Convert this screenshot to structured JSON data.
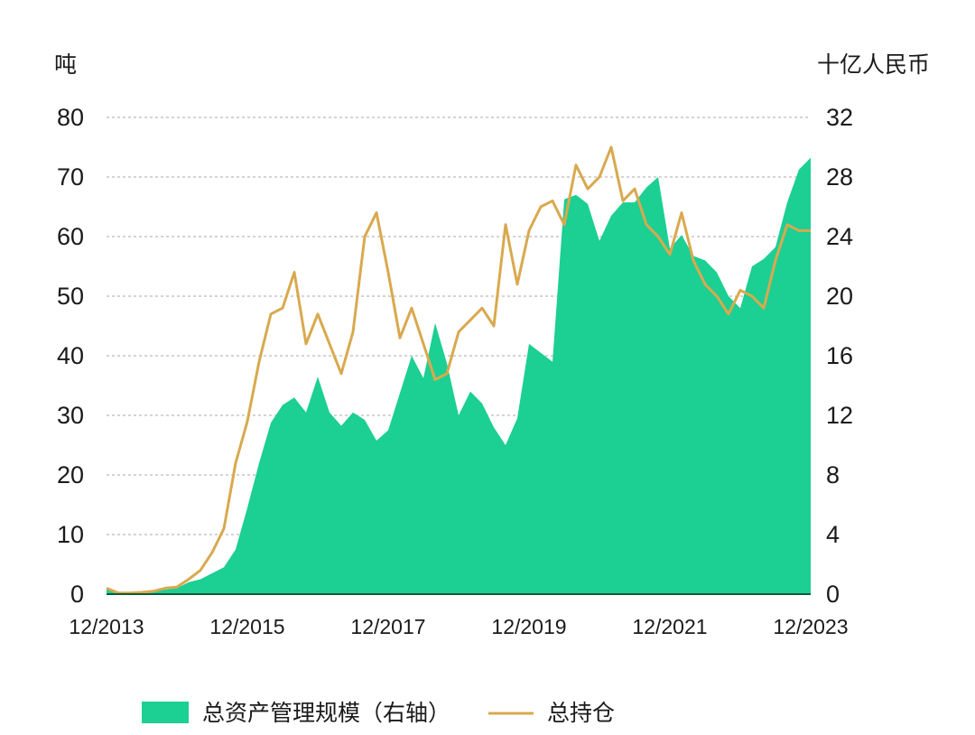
{
  "chart_data": {
    "type": "area",
    "left_axis": {
      "unit_label": "吨",
      "ylim": [
        0,
        80
      ],
      "ticks": [
        "0",
        "10",
        "20",
        "30",
        "40",
        "50",
        "60",
        "70",
        "80"
      ]
    },
    "right_axis": {
      "unit_label": "十亿人民币",
      "ylim": [
        0,
        32
      ],
      "ticks": [
        "0",
        "4",
        "8",
        "12",
        "16",
        "20",
        "24",
        "28",
        "32"
      ]
    },
    "x_ticks": [
      "12/2013",
      "12/2015",
      "12/2017",
      "12/2019",
      "12/2021",
      "12/2023"
    ],
    "x_tick_dates": [
      "2013-12",
      "2015-12",
      "2017-12",
      "2019-12",
      "2021-12",
      "2023-12"
    ],
    "xlim": [
      "2013-12",
      "2023-12"
    ],
    "grid": true,
    "legend_position": "bottom",
    "colors": {
      "area": "#1ccf93",
      "line": "#d9a94e",
      "grid": "#aaaaaa",
      "baseline": "#0e5a3c"
    },
    "series": [
      {
        "name": "总资产管理规模（右轴）",
        "kind": "area",
        "axis": "right",
        "x": [
          "2013-12",
          "2014-02",
          "2014-04",
          "2014-06",
          "2014-08",
          "2014-10",
          "2014-12",
          "2015-02",
          "2015-04",
          "2015-06",
          "2015-08",
          "2015-10",
          "2015-12",
          "2016-02",
          "2016-04",
          "2016-06",
          "2016-08",
          "2016-10",
          "2016-12",
          "2017-02",
          "2017-04",
          "2017-06",
          "2017-08",
          "2017-10",
          "2017-12",
          "2018-02",
          "2018-04",
          "2018-06",
          "2018-08",
          "2018-10",
          "2018-12",
          "2019-02",
          "2019-04",
          "2019-06",
          "2019-08",
          "2019-10",
          "2019-12",
          "2020-02",
          "2020-04",
          "2020-06",
          "2020-08",
          "2020-10",
          "2020-12",
          "2021-02",
          "2021-04",
          "2021-06",
          "2021-08",
          "2021-10",
          "2021-12",
          "2022-02",
          "2022-04",
          "2022-06",
          "2022-08",
          "2022-10",
          "2022-12",
          "2023-02",
          "2023-04",
          "2023-06",
          "2023-08",
          "2023-10",
          "2023-12"
        ],
        "values": [
          0.3,
          0.1,
          0.1,
          0.1,
          0.2,
          0.3,
          0.4,
          0.8,
          1.0,
          1.4,
          1.8,
          3.0,
          5.8,
          8.8,
          11.5,
          12.7,
          13.2,
          12.2,
          14.6,
          12.2,
          11.3,
          12.2,
          11.7,
          10.3,
          11.0,
          13.5,
          16.0,
          14.5,
          18.2,
          15.5,
          12.0,
          13.6,
          12.8,
          11.2,
          10.0,
          11.8,
          16.8,
          16.2,
          15.6,
          26.5,
          26.8,
          26.2,
          23.7,
          25.4,
          26.3,
          26.3,
          27.3,
          28.0,
          23.2,
          24.1,
          22.7,
          22.4,
          21.6,
          20.0,
          19.2,
          22.0,
          22.5,
          23.3,
          26.3,
          28.5,
          29.3
        ]
      },
      {
        "name": "总持仓",
        "kind": "line",
        "axis": "left",
        "x": [
          "2013-12",
          "2014-02",
          "2014-04",
          "2014-06",
          "2014-08",
          "2014-10",
          "2014-12",
          "2015-02",
          "2015-04",
          "2015-06",
          "2015-08",
          "2015-10",
          "2015-12",
          "2016-02",
          "2016-04",
          "2016-06",
          "2016-08",
          "2016-10",
          "2016-12",
          "2017-02",
          "2017-04",
          "2017-06",
          "2017-08",
          "2017-10",
          "2017-12",
          "2018-02",
          "2018-04",
          "2018-06",
          "2018-08",
          "2018-10",
          "2018-12",
          "2019-02",
          "2019-04",
          "2019-06",
          "2019-08",
          "2019-10",
          "2019-12",
          "2020-02",
          "2020-04",
          "2020-06",
          "2020-08",
          "2020-10",
          "2020-12",
          "2021-02",
          "2021-04",
          "2021-06",
          "2021-08",
          "2021-10",
          "2021-12",
          "2022-02",
          "2022-04",
          "2022-06",
          "2022-08",
          "2022-10",
          "2022-12",
          "2023-02",
          "2023-04",
          "2023-06",
          "2023-08",
          "2023-10",
          "2023-12"
        ],
        "values": [
          1.0,
          0.2,
          0.2,
          0.3,
          0.5,
          1.0,
          1.2,
          2.5,
          4.0,
          7.0,
          11.0,
          22.0,
          29.0,
          39.0,
          47.0,
          48.0,
          54.0,
          42.0,
          47.0,
          42.0,
          37.0,
          44.0,
          60.0,
          64.0,
          54.0,
          43.0,
          48.0,
          42.0,
          36.0,
          37.0,
          44.0,
          46.0,
          48.0,
          45.0,
          62.0,
          52.0,
          61.0,
          65.0,
          66.0,
          62.0,
          72.0,
          68.0,
          70.0,
          75.0,
          66.0,
          68.0,
          62.0,
          60.0,
          57.0,
          64.0,
          56.0,
          52.0,
          50.0,
          47.0,
          51.0,
          50.0,
          48.0,
          56.0,
          62.0,
          61.0,
          61.0
        ]
      }
    ]
  },
  "legend": {
    "items": [
      {
        "label": "总资产管理规模（右轴）",
        "kind": "area"
      },
      {
        "label": "总持仓",
        "kind": "line"
      }
    ]
  }
}
